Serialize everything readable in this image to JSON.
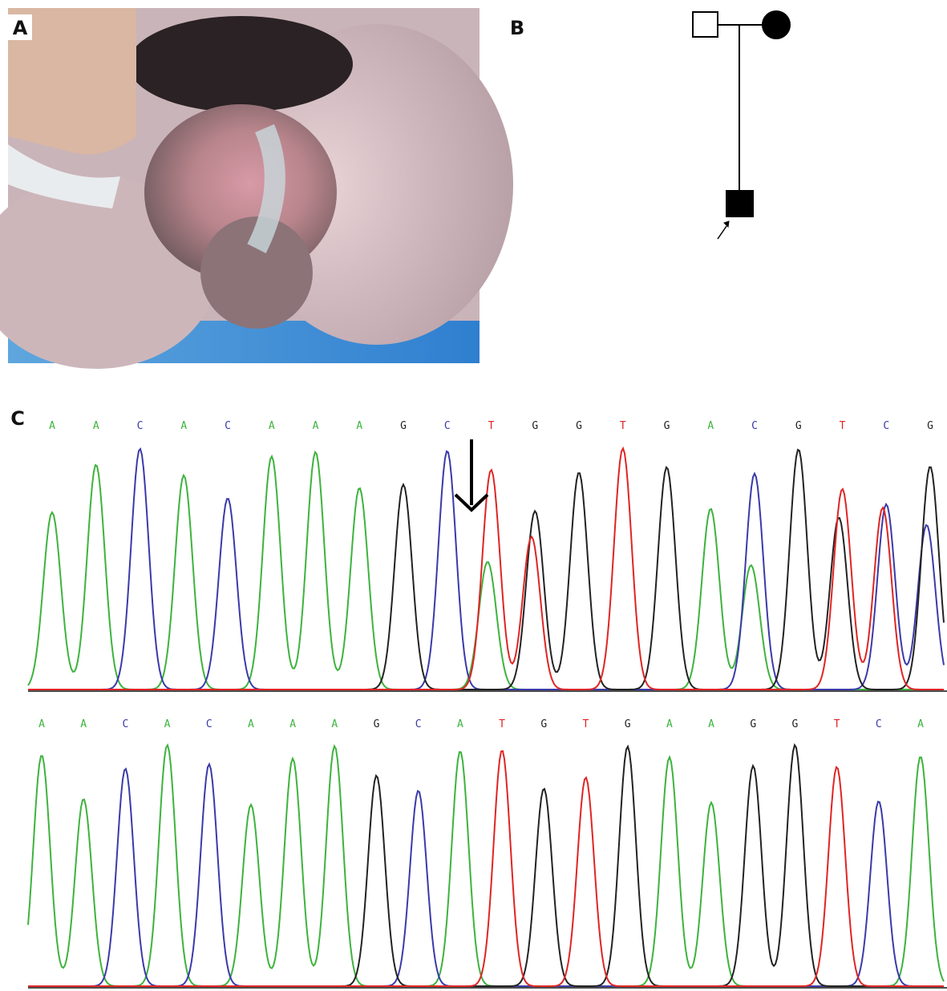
{
  "panels": [
    {
      "label": "A"
    },
    {
      "label": "B"
    },
    {
      "label": "C"
    }
  ],
  "sequences": [
    {
      "bases": [
        "A",
        "A",
        "C",
        "A",
        "C",
        "A",
        "A",
        "A",
        "G",
        "C",
        "T",
        "G",
        "G",
        "T",
        "G",
        "A",
        "C",
        "G",
        "T",
        "C",
        "G"
      ]
    },
    {
      "bases": [
        "A",
        "A",
        "C",
        "A",
        "C",
        "A",
        "A",
        "A",
        "G",
        "C",
        "A",
        "T",
        "G",
        "T",
        "G",
        "A",
        "A",
        "G",
        "G",
        "T",
        "C",
        "A"
      ]
    }
  ]
}
